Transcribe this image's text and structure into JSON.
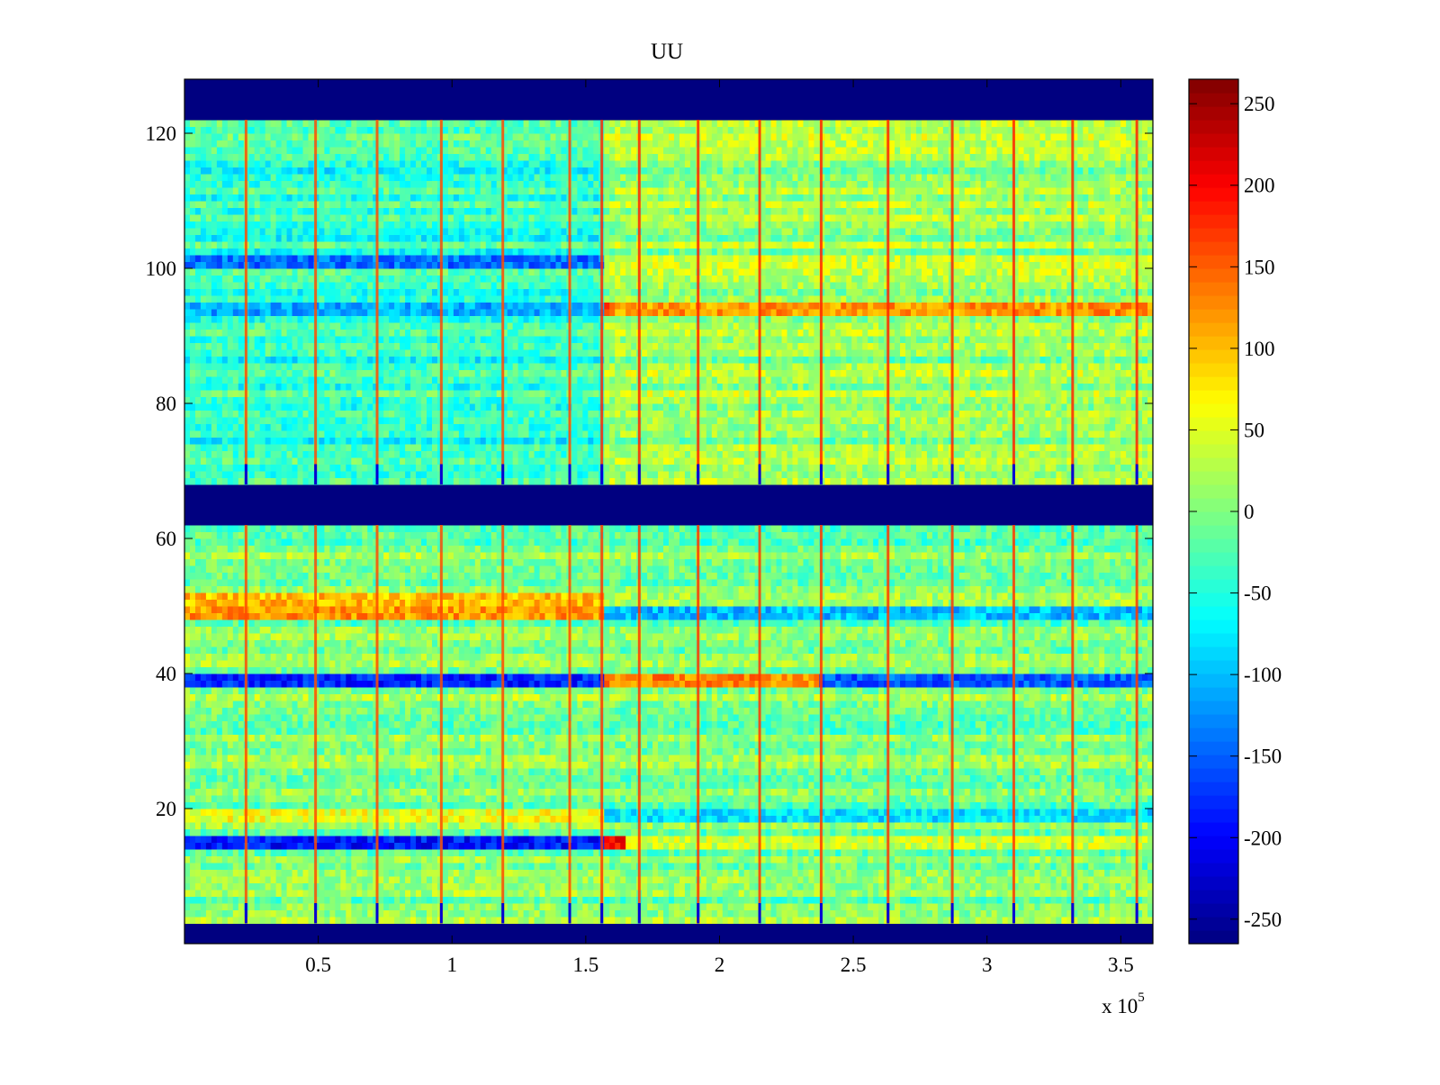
{
  "chart_data": {
    "type": "heatmap",
    "title": "UU",
    "xlabel": "",
    "ylabel": "",
    "x_multiplier_label": {
      "prefix": "x 10",
      "exponent": "5"
    },
    "xlim": [
      0,
      3.62
    ],
    "ylim": [
      0,
      128
    ],
    "x_ticks": [
      {
        "value": 0.5,
        "label": "0.5"
      },
      {
        "value": 1,
        "label": "1"
      },
      {
        "value": 1.5,
        "label": "1.5"
      },
      {
        "value": 2,
        "label": "2"
      },
      {
        "value": 2.5,
        "label": "2.5"
      },
      {
        "value": 3,
        "label": "3"
      },
      {
        "value": 3.5,
        "label": "3.5"
      }
    ],
    "y_ticks": [
      {
        "value": 20,
        "label": "20"
      },
      {
        "value": 40,
        "label": "40"
      },
      {
        "value": 60,
        "label": "60"
      },
      {
        "value": 80,
        "label": "80"
      },
      {
        "value": 100,
        "label": "100"
      },
      {
        "value": 120,
        "label": "120"
      }
    ],
    "colormap": "jet",
    "color_range": [
      -265,
      265
    ],
    "colorbar_ticks": [
      {
        "value": 250,
        "label": "250"
      },
      {
        "value": 200,
        "label": "200"
      },
      {
        "value": 150,
        "label": "150"
      },
      {
        "value": 100,
        "label": "100"
      },
      {
        "value": 50,
        "label": "50"
      },
      {
        "value": 0,
        "label": "0"
      },
      {
        "value": -50,
        "label": "-50"
      },
      {
        "value": -100,
        "label": "-100"
      },
      {
        "value": -150,
        "label": "-150"
      },
      {
        "value": -200,
        "label": "-200"
      },
      {
        "value": -250,
        "label": "-250"
      }
    ],
    "empty_row_bands": [
      {
        "y_from": 0,
        "y_to": 3,
        "value": -265
      },
      {
        "y_from": 62,
        "y_to": 68,
        "value": -265
      },
      {
        "y_from": 122,
        "y_to": 128,
        "value": -265
      }
    ],
    "regime_change_x": 1.56,
    "regime_values": {
      "upper_before": -40,
      "upper_after": 15,
      "lower_before": 0,
      "lower_after": -5
    },
    "spike_columns_x": [
      0.23,
      0.49,
      0.72,
      0.96,
      1.19,
      1.44,
      1.56,
      1.7,
      1.92,
      2.15,
      2.38,
      2.63,
      2.87,
      3.1,
      3.32,
      3.56
    ],
    "notable_rows": [
      {
        "y": 15,
        "before": -190,
        "after": 40,
        "x_start": 1.56,
        "x_end": 1.65,
        "special_value": 200
      },
      {
        "y": 19,
        "before": 60,
        "after": -80
      },
      {
        "y": 39,
        "before": -180,
        "after": 130,
        "x_end_special": 2.38,
        "after_end": -150
      },
      {
        "y": 49,
        "before": 120,
        "after": -100
      },
      {
        "y": 51,
        "before": 100,
        "after": 20
      },
      {
        "y": 94,
        "before": -110,
        "after": 120,
        "x_start": 1.56,
        "x_end": 1.6,
        "special_value": 150
      },
      {
        "y": 101,
        "before": -140,
        "after": 40
      }
    ]
  }
}
